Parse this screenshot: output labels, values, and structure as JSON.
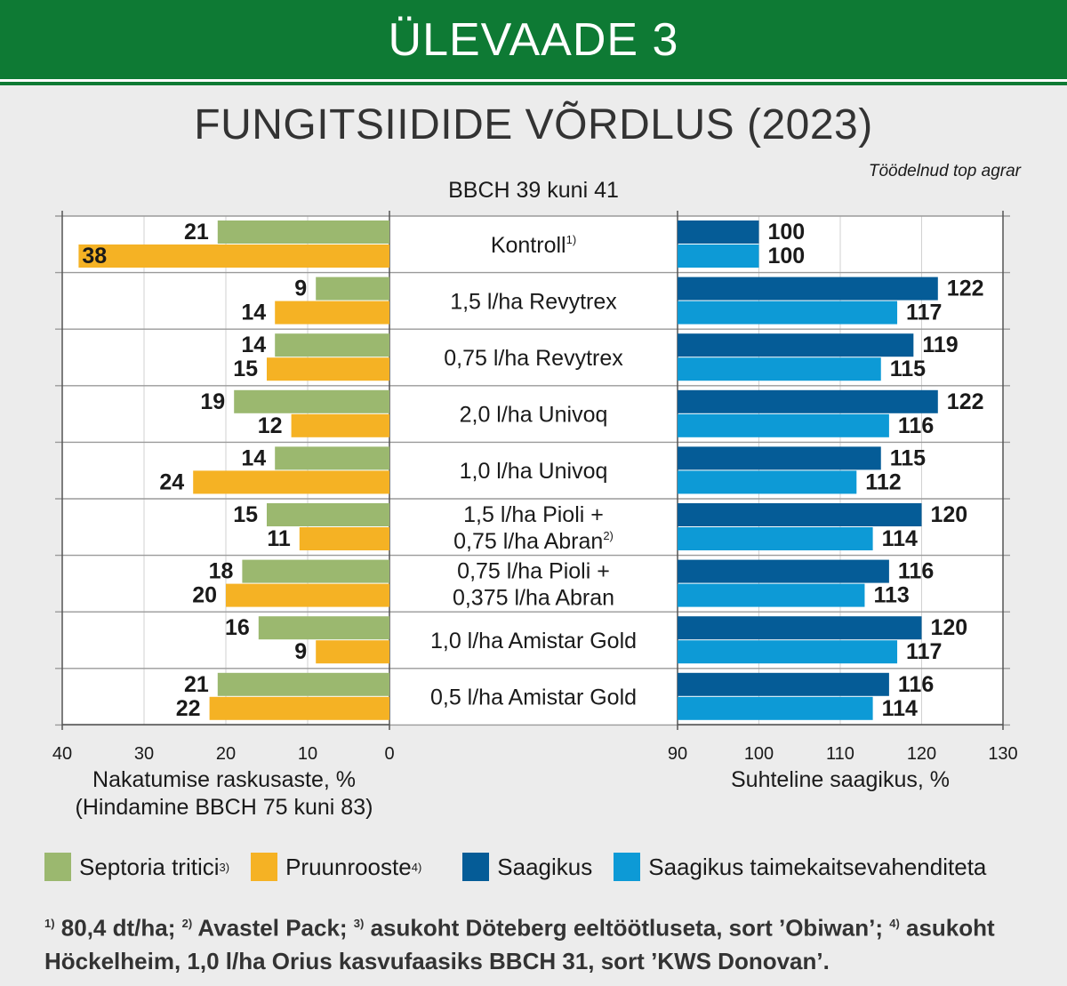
{
  "header": {
    "banner": "ÜLEVAADE 3",
    "title": "FUNGITSIIDIDE VÕRDLUS (2023)",
    "source": "Töödelnud top agrar",
    "subtitle": "BBCH 39 kuni 41"
  },
  "colors": {
    "septoria": "#9bb86f",
    "pruunrooste": "#f5b224",
    "saagikus": "#055c97",
    "saagikus_taimekaitse": "#0d9ad6",
    "banner": "#0e7a34"
  },
  "chart_data": [
    {
      "type": "bar",
      "orientation": "horizontal",
      "direction": "reversed",
      "xlim": [
        40,
        0
      ],
      "xticks": [
        40,
        30,
        20,
        10,
        0
      ],
      "xlabel": "Nakatumise raskusaste, %",
      "xlabel2": "(Hindamine BBCH 75 kuni 83)",
      "categories": [
        "Kontroll",
        "1,5 l/ha Revytrex",
        "0,75 l/ha Revytrex",
        "2,0 l/ha Univoq",
        "1,0 l/ha Univoq",
        "1,5 l/ha Pioli + 0,75 l/ha Abran",
        "0,75 l/ha Pioli + 0,375 l/ha Abran",
        "1,0 l/ha Amistar Gold",
        "0,5 l/ha Amistar Gold"
      ],
      "category_display": [
        {
          "lines": [
            "Kontroll"
          ],
          "sup": "1)"
        },
        {
          "lines": [
            "1,5 l/ha Revytrex"
          ]
        },
        {
          "lines": [
            "0,75 l/ha Revytrex"
          ]
        },
        {
          "lines": [
            "2,0 l/ha Univoq"
          ]
        },
        {
          "lines": [
            "1,0 l/ha Univoq"
          ]
        },
        {
          "lines": [
            "1,5 l/ha Pioli +",
            "0,75 l/ha Abran"
          ],
          "sup": "2)"
        },
        {
          "lines": [
            "0,75 l/ha Pioli +",
            "0,375 l/ha Abran"
          ]
        },
        {
          "lines": [
            "1,0 l/ha Amistar Gold"
          ]
        },
        {
          "lines": [
            "0,5 l/ha Amistar Gold"
          ]
        }
      ],
      "series": [
        {
          "name": "Septoria tritici",
          "values": [
            21,
            9,
            14,
            19,
            14,
            15,
            18,
            16,
            21
          ]
        },
        {
          "name": "Pruunrooste",
          "values": [
            38,
            14,
            15,
            12,
            24,
            11,
            20,
            9,
            22
          ]
        }
      ],
      "grid": true
    },
    {
      "type": "bar",
      "orientation": "horizontal",
      "xlim": [
        90,
        130
      ],
      "xticks": [
        90,
        100,
        110,
        120,
        130
      ],
      "xlabel": "Suhteline saagikus, %",
      "categories": [
        "Kontroll",
        "1,5 l/ha Revytrex",
        "0,75 l/ha Revytrex",
        "2,0 l/ha Univoq",
        "1,0 l/ha Univoq",
        "1,5 l/ha Pioli + 0,75 l/ha Abran",
        "0,75 l/ha Pioli + 0,375 l/ha Abran",
        "1,0 l/ha Amistar Gold",
        "0,5 l/ha Amistar Gold"
      ],
      "series": [
        {
          "name": "Saagikus",
          "values": [
            100,
            122,
            119,
            122,
            115,
            120,
            116,
            120,
            116
          ]
        },
        {
          "name": "Saagikus taimekaitsevahenditeta",
          "values": [
            100,
            117,
            115,
            116,
            112,
            114,
            113,
            117,
            114
          ]
        }
      ],
      "grid": true
    }
  ],
  "legend": [
    {
      "label": "Septoria tritici",
      "sup": "3)",
      "color": "#9bb86f"
    },
    {
      "label": "Pruunrooste",
      "sup": "4)",
      "color": "#f5b224"
    },
    {
      "label": "Saagikus",
      "sup": "",
      "color": "#055c97"
    },
    {
      "label": "Saagikus taimekaitsevahenditeta",
      "sup": "",
      "color": "#0d9ad6"
    }
  ],
  "footnotes": {
    "n1_mark": "1)",
    "n1_text": " 80,4 dt/ha; ",
    "n2_mark": "2)",
    "n2_text": " Avastel Pack; ",
    "n3_mark": "3)",
    "n3_text": " asukoht Döteberg eeltöötluseta, sort ’Obiwan’; ",
    "n4_mark": "4)",
    "n4_text": " asukoht Höckelheim, 1,0 l/ha Orius kasvufaasiks BBCH 31, sort ’KWS Donovan’."
  }
}
